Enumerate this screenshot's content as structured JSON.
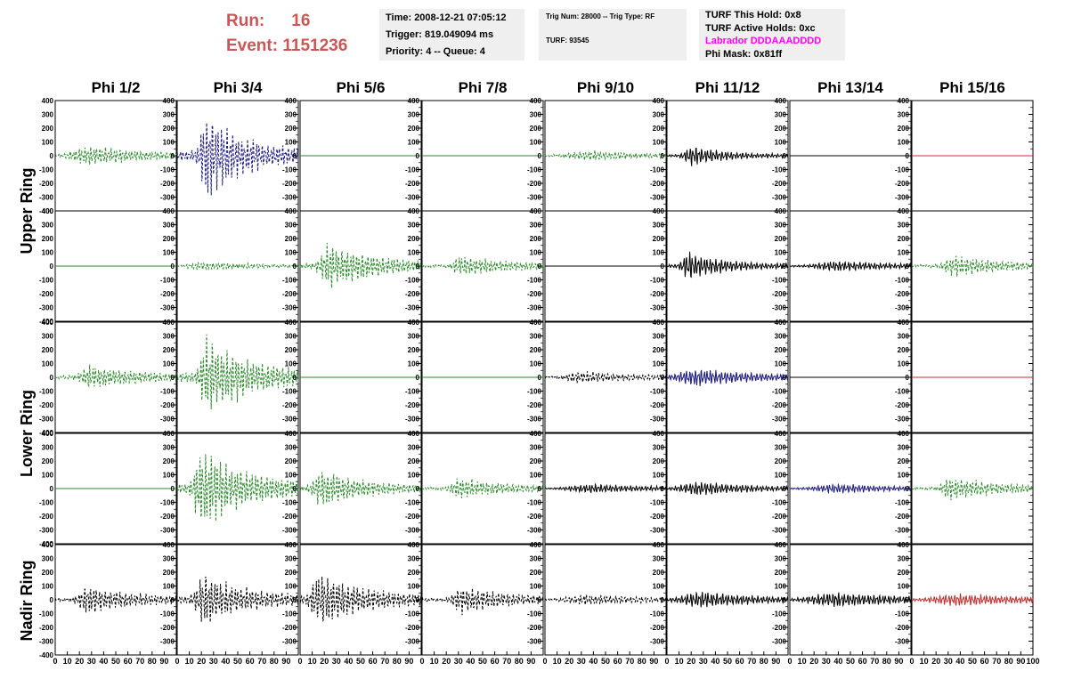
{
  "header": {
    "run_label": "Run:",
    "run_value": "16",
    "event_label": "Event:",
    "event_value": "1151236",
    "time": "Time: 2008-12-21 07:05:12",
    "trigger": "Trigger: 819.049094 ms",
    "priority": "Priority: 4 -- Queue: 4",
    "trig_num": "Trig Num: 28000 -- Trig Type: RF",
    "turf": "TURF: 93545",
    "turf_this_hold": "TURF This Hold: 0x8",
    "turf_active_holds": "TURF Active Holds: 0xc",
    "labrador": "Labrador DDDAAADDDD",
    "phi_mask": "Phi Mask: 0x81ff"
  },
  "colors": {
    "run_text": "#cc5555",
    "labrador_text": "#ff00ff",
    "green_trace": "#2a8a2a",
    "blue_trace": "#1a1a80",
    "black_trace": "#000000",
    "red_trace": "#c03030"
  },
  "chart_data": {
    "type": "line",
    "columns": [
      "Phi 1/2",
      "Phi 3/4",
      "Phi 5/6",
      "Phi 7/8",
      "Phi 9/10",
      "Phi 11/12",
      "Phi 13/14",
      "Phi 15/16"
    ],
    "row_groups": [
      "Upper Ring",
      "Lower Ring",
      "Nadir Ring"
    ],
    "ylim": [
      -400,
      400
    ],
    "yticks": [
      "-300",
      "-200",
      "-100",
      "0",
      "100",
      "200",
      "300",
      "400"
    ],
    "xlim": [
      0,
      100
    ],
    "xticks": [
      "0",
      "10",
      "20",
      "30",
      "40",
      "50",
      "60",
      "70",
      "80",
      "90",
      "100"
    ],
    "panels": [
      [
        {
          "style": "dashed",
          "color": "green",
          "amp": 90,
          "center": 28,
          "width": 14,
          "decay": 45
        },
        {
          "style": "dashed",
          "color": "blue",
          "amp": 380,
          "center": 24,
          "width": 5,
          "decay": 30
        },
        {
          "style": "flat",
          "color": "green"
        },
        {
          "style": "flat",
          "color": "green"
        },
        {
          "style": "dashed",
          "color": "green",
          "amp": 40,
          "center": 40,
          "width": 25,
          "decay": 60
        },
        {
          "style": "solid",
          "color": "black",
          "amp": 90,
          "center": 20,
          "width": 6,
          "decay": 28
        },
        {
          "style": "flat",
          "color": "black"
        },
        {
          "style": "flat",
          "color": "red"
        }
      ],
      [
        {
          "style": "flat",
          "color": "green"
        },
        {
          "style": "dashed",
          "color": "green",
          "amp": 35,
          "center": 20,
          "width": 12,
          "decay": 60
        },
        {
          "style": "dashed",
          "color": "green",
          "amp": 200,
          "center": 25,
          "width": 8,
          "decay": 35
        },
        {
          "style": "dashed",
          "color": "green",
          "amp": 90,
          "center": 33,
          "width": 8,
          "decay": 40
        },
        {
          "style": "flat",
          "color": "black"
        },
        {
          "style": "solid",
          "color": "black",
          "amp": 120,
          "center": 18,
          "width": 6,
          "decay": 30
        },
        {
          "style": "solid",
          "color": "black",
          "amp": 45,
          "center": 40,
          "width": 20,
          "decay": 60
        },
        {
          "style": "dashed",
          "color": "green",
          "amp": 90,
          "center": 35,
          "width": 9,
          "decay": 45
        }
      ],
      [
        {
          "style": "dashed",
          "color": "green",
          "amp": 100,
          "center": 30,
          "width": 10,
          "decay": 45
        },
        {
          "style": "dashed",
          "color": "green",
          "amp": 330,
          "center": 25,
          "width": 6,
          "decay": 35
        },
        {
          "style": "flat",
          "color": "green"
        },
        {
          "style": "flat",
          "color": "green"
        },
        {
          "style": "dashed",
          "color": "black",
          "amp": 50,
          "center": 30,
          "width": 15,
          "decay": 55
        },
        {
          "style": "solid",
          "color": "blue",
          "amp": 75,
          "center": 25,
          "width": 18,
          "decay": 55
        },
        {
          "style": "flat",
          "color": "black"
        },
        {
          "style": "flat",
          "color": "red"
        }
      ],
      [
        {
          "style": "flat",
          "color": "green"
        },
        {
          "style": "dashed",
          "color": "green",
          "amp": 350,
          "center": 20,
          "width": 6,
          "decay": 35
        },
        {
          "style": "dashed",
          "color": "green",
          "amp": 160,
          "center": 18,
          "width": 8,
          "decay": 35
        },
        {
          "style": "dashed",
          "color": "green",
          "amp": 90,
          "center": 32,
          "width": 8,
          "decay": 40
        },
        {
          "style": "solid",
          "color": "black",
          "amp": 40,
          "center": 40,
          "width": 22,
          "decay": 60
        },
        {
          "style": "solid",
          "color": "black",
          "amp": 60,
          "center": 25,
          "width": 16,
          "decay": 50
        },
        {
          "style": "solid",
          "color": "blue",
          "amp": 40,
          "center": 40,
          "width": 22,
          "decay": 60
        },
        {
          "style": "dashed",
          "color": "green",
          "amp": 100,
          "center": 32,
          "width": 8,
          "decay": 45
        }
      ],
      [
        {
          "style": "dashed",
          "color": "black",
          "amp": 120,
          "center": 28,
          "width": 9,
          "decay": 40
        },
        {
          "style": "dashed",
          "color": "black",
          "amp": 220,
          "center": 23,
          "width": 8,
          "decay": 35
        },
        {
          "style": "dashed",
          "color": "black",
          "amp": 240,
          "center": 17,
          "width": 8,
          "decay": 35
        },
        {
          "style": "dashed",
          "color": "black",
          "amp": 120,
          "center": 32,
          "width": 7,
          "decay": 40
        },
        {
          "style": "dashed",
          "color": "black",
          "amp": 45,
          "center": 35,
          "width": 20,
          "decay": 60
        },
        {
          "style": "solid",
          "color": "black",
          "amp": 70,
          "center": 30,
          "width": 20,
          "decay": 55
        },
        {
          "style": "solid",
          "color": "black",
          "amp": 65,
          "center": 40,
          "width": 25,
          "decay": 65
        },
        {
          "style": "solid",
          "color": "red",
          "amp": 55,
          "center": 40,
          "width": 25,
          "decay": 65
        }
      ]
    ]
  }
}
